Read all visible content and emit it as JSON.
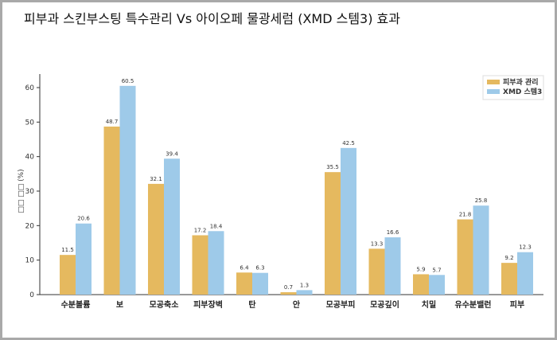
{
  "title": "피부과 스킨부스팅 특수관리 Vs 아이오페 물광세럼 (XMD 스템3) 효과",
  "chart_data": {
    "type": "bar",
    "title": "피부과 스킨부스팅 특수관리 Vs 아이오페 물광세럼 (XMD 스템3) 효과",
    "xlabel": "",
    "ylabel": "□□ □□ (%)",
    "ylim": [
      0,
      62
    ],
    "yticks": [
      0,
      10,
      20,
      30,
      40,
      50,
      60
    ],
    "grid": false,
    "legend": "top-right",
    "categories": [
      "수분볼륨",
      "보",
      "모공축소",
      "피부장벽",
      "탄",
      "안",
      "모공부피",
      "모공깊이",
      "치밀",
      "유수분밸런",
      "피부"
    ],
    "series": [
      {
        "name": "피부과 관리",
        "color": "#e5b95f",
        "values": [
          11.5,
          48.7,
          32.1,
          17.2,
          6.4,
          0.7,
          35.5,
          13.3,
          5.9,
          21.8,
          9.2
        ]
      },
      {
        "name": "XMD 스템3",
        "color": "#9ecae9",
        "values": [
          20.6,
          60.5,
          39.4,
          18.4,
          6.3,
          1.3,
          42.5,
          16.6,
          5.7,
          25.8,
          12.3
        ]
      }
    ]
  }
}
